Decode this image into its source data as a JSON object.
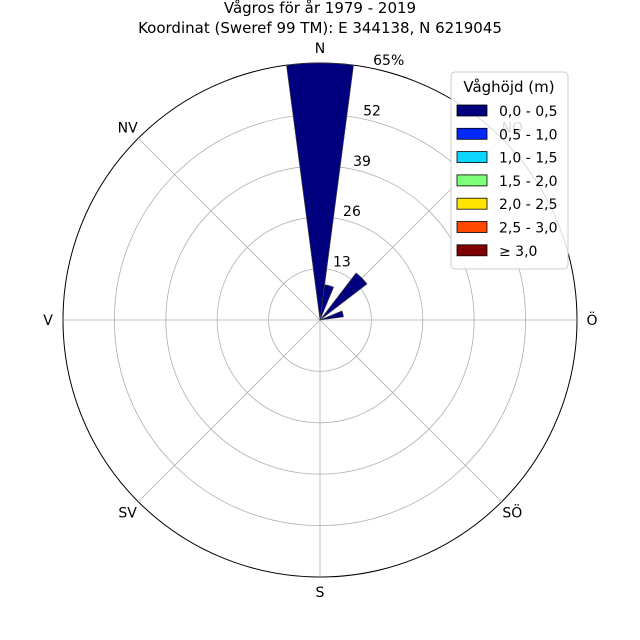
{
  "chart_data": {
    "type": "polar-bar",
    "title": "Vågros för år 1979 - 2019",
    "subtitle": "Koordinat (Sweref 99 TM): E 344138, N 6219045",
    "directions": [
      "N",
      "NO",
      "Ö",
      "SÖ",
      "S",
      "SV",
      "V",
      "NV"
    ],
    "radial_ticks": [
      "13",
      "26",
      "39",
      "52",
      "65%"
    ],
    "radial_tick_values": [
      13,
      26,
      39,
      52,
      65
    ],
    "rmax": 65,
    "bin_width_deg": 15,
    "legend_title": "Våghöjd (m)",
    "legend_placement": "top-right",
    "grid": true,
    "series": [
      {
        "name": "0,0 - 0,5",
        "color": "#00007f",
        "bars": [
          {
            "direction_deg": 0,
            "value": 65
          },
          {
            "direction_deg": 15,
            "value": 9
          },
          {
            "direction_deg": 45,
            "value": 15
          },
          {
            "direction_deg": 75,
            "value": 6
          }
        ]
      },
      {
        "name": "0,5 - 1,0",
        "color": "#0028ff",
        "bars": []
      },
      {
        "name": "1,0 - 1,5",
        "color": "#0dd5ff",
        "bars": []
      },
      {
        "name": "1,5 - 2,0",
        "color": "#7cff79",
        "bars": []
      },
      {
        "name": "2,0 - 2,5",
        "color": "#ffe500",
        "bars": []
      },
      {
        "name": "2,5 - 3,0",
        "color": "#ff4800",
        "bars": []
      },
      {
        "name": "≥ 3,0",
        "color": "#7f0000",
        "bars": []
      }
    ]
  }
}
